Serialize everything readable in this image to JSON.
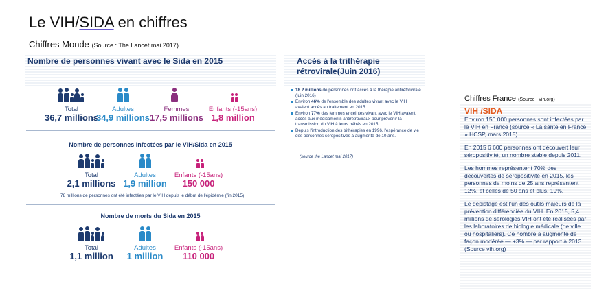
{
  "slide": {
    "title_part1": "Le VIH/",
    "title_part2": "SIDA",
    "title_part3": " en chiffres",
    "subtitle": "Chiffres Monde ",
    "subtitle_source": "(Source : The Lancet mai 2017)"
  },
  "world": {
    "living_title": "Nombre de personnes vivant avec le Sida en 2015",
    "living": [
      {
        "label": "Total",
        "value": "36,7 millions"
      },
      {
        "label": "Adultes",
        "value": "34,9 millions"
      },
      {
        "label": "Femmes",
        "value": "17,5 millions"
      },
      {
        "label": "Enfants (-15ans)",
        "value": "1,8 million"
      }
    ],
    "infected_title": "Nombre de personnes infectées par le VIH/Sida en 2015",
    "infected": [
      {
        "label": "Total",
        "value": "2,1 millions"
      },
      {
        "label": "Adultes",
        "value": "1,9 million"
      },
      {
        "label": "Enfants (-15ans)",
        "value": "150 000"
      }
    ],
    "infected_note": "78 millions de personnes ont été infectées par le VIH depuis le début de l'épidémie (fin 2015)",
    "deaths_title": "Nombre de morts du Sida en 2015",
    "deaths": [
      {
        "label": "Total",
        "value": "1,1 million"
      },
      {
        "label": "Adultes",
        "value": "1 million"
      },
      {
        "label": "Enfants (-15ans)",
        "value": "110 000"
      }
    ]
  },
  "tritherapy": {
    "title": "Accès à la trithérapie rétrovirale(Juin 2016)",
    "items": [
      {
        "bold": "18.2 millions",
        "text": " de personnes ont accès à la thérapie antirétrovirale (juin 2016)"
      },
      {
        "pre": "Environ ",
        "bold": "46%",
        "text": " de l'ensemble des adultes vivant avec le VIH avaient accès au traitement en 2015."
      },
      {
        "pre": "Environ ",
        "bold": "77%",
        "text": " des femmes enceintes vivant avec le VIH avaient accès aux médicaments antirétroviraux pour prévenir la transmission du VIH à leurs bébés en 2015."
      },
      {
        "pre": "",
        "bold": "",
        "text": "Depuis l'introduction des trithérapies en 1996, l'espérance de vie des personnes séropositives a augmenté de 10 ans."
      }
    ],
    "source": "(source the Lancet mai 2017)"
  },
  "france": {
    "heading": "Chiffres France ",
    "heading_source": "(Source : vih.org)",
    "box_title": "VIH /SIDA",
    "p1": "Environ 150 000 personnes sont infectées par le VIH en France (source « La santé en France » HCSP, mars 2015).",
    "p2": "En 2015 6 600 personnes ont découvert leur séropositivité, un nombre stable depuis 2011.",
    "p3": "Les hommes représentent 70% des découvertes de séropositivité en 2015, les personnes de moins de 25 ans représentent 12%, et celles de 50 ans et plus, 19%.",
    "p4": "Le dépistage est l'un des outils majeurs de la prévention différenciée du VIH. En 2015, 5,4 millions de sérologies VIH ont été réalisées par les laboratoires de biologie médicale (de ville ou hospitaliers). Ce nombre a augmenté de façon modérée — +3% — par rapport à 2013. (Source vih.org)"
  },
  "colors": {
    "navy": "#1d3a6e",
    "blue": "#2a8ac8",
    "purple": "#8b2f7e",
    "pink": "#c7217a",
    "orange": "#e35a1f"
  }
}
